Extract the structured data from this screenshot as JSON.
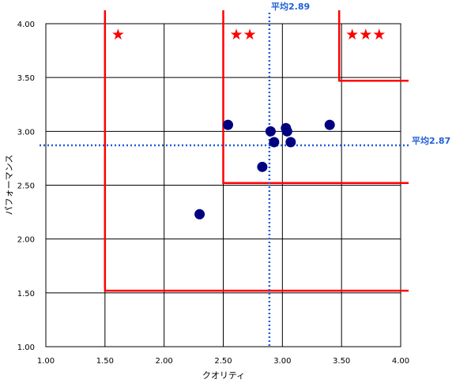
{
  "chart_data": {
    "type": "scatter",
    "xlabel": "クオリティ",
    "ylabel": "パフォーマンス",
    "xlim": [
      1.0,
      4.0
    ],
    "ylim": [
      1.0,
      4.0
    ],
    "x_ticks": [
      "1.00",
      "1.50",
      "2.00",
      "2.50",
      "3.00",
      "3.50",
      "4.00"
    ],
    "y_ticks": [
      "1.00",
      "1.50",
      "2.00",
      "2.50",
      "3.00",
      "3.50",
      "4.00"
    ],
    "grid": true,
    "points": [
      {
        "x": 2.3,
        "y": 2.23
      },
      {
        "x": 2.54,
        "y": 3.06
      },
      {
        "x": 2.83,
        "y": 2.67
      },
      {
        "x": 2.9,
        "y": 3.0
      },
      {
        "x": 2.93,
        "y": 2.9
      },
      {
        "x": 3.03,
        "y": 3.03
      },
      {
        "x": 3.04,
        "y": 3.0
      },
      {
        "x": 3.07,
        "y": 2.9
      },
      {
        "x": 3.4,
        "y": 3.06
      }
    ],
    "averages": {
      "x": {
        "value": 2.89,
        "label": "平均2.89"
      },
      "y": {
        "value": 2.87,
        "label": "平均2.87"
      }
    },
    "zones": [
      {
        "x": 1.5,
        "y": 1.52,
        "stars": "★"
      },
      {
        "x": 2.5,
        "y": 2.52,
        "stars": "★★"
      },
      {
        "x": 3.48,
        "y": 3.47,
        "stars": "★★★"
      }
    ],
    "colors": {
      "points": "#000080",
      "average_line": "#1f5fd6",
      "zone_line": "#ff0000",
      "stars": "#ff0000",
      "grid": "#000000"
    }
  }
}
